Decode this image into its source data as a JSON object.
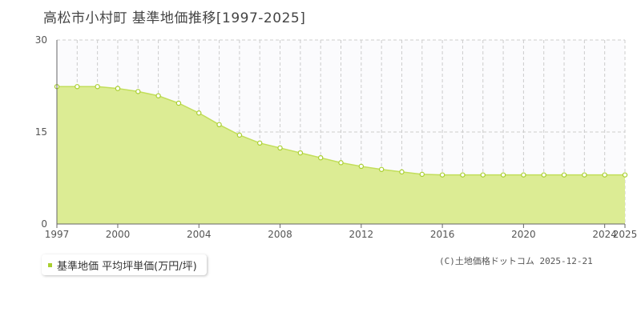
{
  "chart_data": {
    "type": "area",
    "title": "高松市小村町 基準地価推移[1997-2025]",
    "x": [
      1997,
      1998,
      1999,
      2000,
      2001,
      2002,
      2003,
      2004,
      2005,
      2006,
      2007,
      2008,
      2009,
      2010,
      2011,
      2012,
      2013,
      2014,
      2015,
      2016,
      2017,
      2018,
      2019,
      2020,
      2021,
      2022,
      2023,
      2024,
      2025
    ],
    "series": [
      {
        "name": "基準地価 平均坪単価(万円/坪)",
        "values": [
          22.4,
          22.4,
          22.4,
          22.1,
          21.6,
          20.9,
          19.7,
          18.1,
          16.2,
          14.5,
          13.2,
          12.4,
          11.6,
          10.8,
          10.0,
          9.4,
          8.9,
          8.5,
          8.1,
          8.0,
          8.0,
          8.0,
          8.0,
          8.0,
          8.0,
          8.0,
          8.0,
          8.0,
          8.0
        ]
      }
    ],
    "ylim": [
      0,
      30
    ],
    "yticks": [
      0,
      15,
      30
    ],
    "xticks": [
      1997,
      2000,
      2004,
      2008,
      2012,
      2016,
      2020,
      2024,
      2025
    ],
    "grid": true,
    "legend": "bottom-left",
    "colors": {
      "fill": "#dcec94",
      "line": "#c2de5a",
      "marker": "#a9cf2f",
      "grid": "#cccccc"
    }
  },
  "legend": {
    "label": "基準地価 平均坪単価(万円/坪)"
  },
  "credit": "(C)土地価格ドットコム 2025-12-21"
}
